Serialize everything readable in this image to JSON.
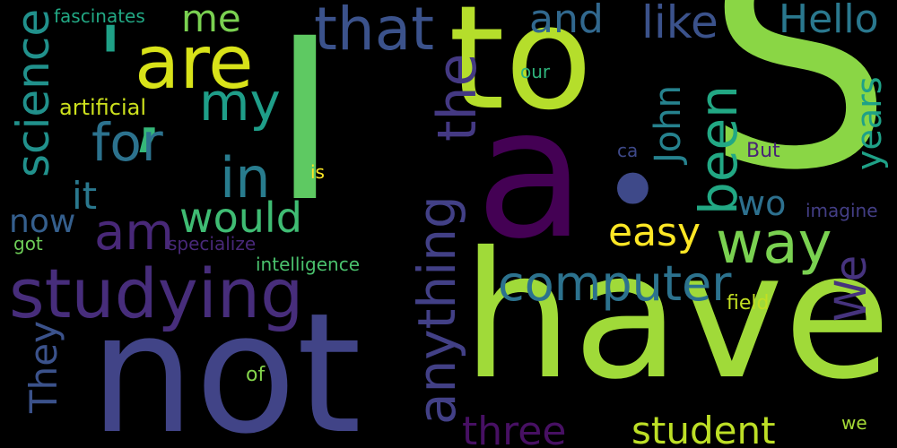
{
  "cloud": {
    "background": "#000000",
    "words": [
      {
        "id": "s",
        "text": "S",
        "color": "#8ad645"
      },
      {
        "id": "i",
        "text": "I",
        "color": "#5ec962"
      },
      {
        "id": "to",
        "text": "to",
        "color": "#b5de2b"
      },
      {
        "id": "have",
        "text": "have",
        "color": "#a0da39"
      },
      {
        "id": "not",
        "text": "not",
        "color": "#414487"
      },
      {
        "id": "a",
        "text": "a",
        "color": "#440154"
      },
      {
        "id": "dot",
        "text": "•",
        "color": "#3e4989"
      },
      {
        "id": "quote",
        "text": "'",
        "color": "#1fa187"
      },
      {
        "id": "apostrophe",
        "text": "’",
        "color": "#35b779"
      },
      {
        "id": "are",
        "text": "are",
        "color": "#d8e219"
      },
      {
        "id": "that",
        "text": "that",
        "color": "#3b528b"
      },
      {
        "id": "studying",
        "text": "studying",
        "color": "#472d7b"
      },
      {
        "id": "science",
        "text": "science",
        "color": "#21918c"
      },
      {
        "id": "my",
        "text": "my",
        "color": "#1f9e89"
      },
      {
        "id": "for",
        "text": "for",
        "color": "#2c728e"
      },
      {
        "id": "in",
        "text": "in",
        "color": "#287c8e"
      },
      {
        "id": "it",
        "text": "it",
        "color": "#2a788e"
      },
      {
        "id": "am",
        "text": "am",
        "color": "#482878"
      },
      {
        "id": "would",
        "text": "would",
        "color": "#3fbc73"
      },
      {
        "id": "now",
        "text": "now",
        "color": "#355f8d"
      },
      {
        "id": "the",
        "text": "the",
        "color": "#443983"
      },
      {
        "id": "anything",
        "text": "anything",
        "color": "#424086"
      },
      {
        "id": "and",
        "text": "and",
        "color": "#31688e"
      },
      {
        "id": "like",
        "text": "like",
        "color": "#3b528b"
      },
      {
        "id": "hello",
        "text": "Hello",
        "color": "#2a788e"
      },
      {
        "id": "me",
        "text": "me",
        "color": "#7ad151"
      },
      {
        "id": "fascinates",
        "text": "fascinates",
        "color": "#22a884"
      },
      {
        "id": "artificial",
        "text": "artificial",
        "color": "#cde11d"
      },
      {
        "id": "our",
        "text": "our",
        "color": "#2fb47c"
      },
      {
        "id": "john",
        "text": "John",
        "color": "#26828e"
      },
      {
        "id": "been",
        "text": "been",
        "color": "#22a884"
      },
      {
        "id": "years",
        "text": "years",
        "color": "#1fa187"
      },
      {
        "id": "but",
        "text": "But",
        "color": "#482475"
      },
      {
        "id": "ca",
        "text": "ca",
        "color": "#3e4989"
      },
      {
        "id": "is",
        "text": "is",
        "color": "#fde725"
      },
      {
        "id": "wo",
        "text": "wo",
        "color": "#2d708e"
      },
      {
        "id": "imagine",
        "text": "imagine",
        "color": "#433e85"
      },
      {
        "id": "easy",
        "text": "easy",
        "color": "#fde725"
      },
      {
        "id": "way",
        "text": "way",
        "color": "#7ad151"
      },
      {
        "id": "we_cap",
        "text": "We",
        "color": "#46337e"
      },
      {
        "id": "computer",
        "text": "computer",
        "color": "#2c728e"
      },
      {
        "id": "specialize",
        "text": "specialize",
        "color": "#482878"
      },
      {
        "id": "got",
        "text": "got",
        "color": "#6ece58"
      },
      {
        "id": "intelligence",
        "text": "intelligence",
        "color": "#4ac16d"
      },
      {
        "id": "field",
        "text": "field",
        "color": "#c2df23"
      },
      {
        "id": "they",
        "text": "They",
        "color": "#3b528b"
      },
      {
        "id": "of",
        "text": "of",
        "color": "#84d44b"
      },
      {
        "id": "three",
        "text": "three",
        "color": "#471063"
      },
      {
        "id": "student",
        "text": "student",
        "color": "#bddf26"
      },
      {
        "id": "we",
        "text": "we",
        "color": "#a5db36"
      }
    ]
  }
}
